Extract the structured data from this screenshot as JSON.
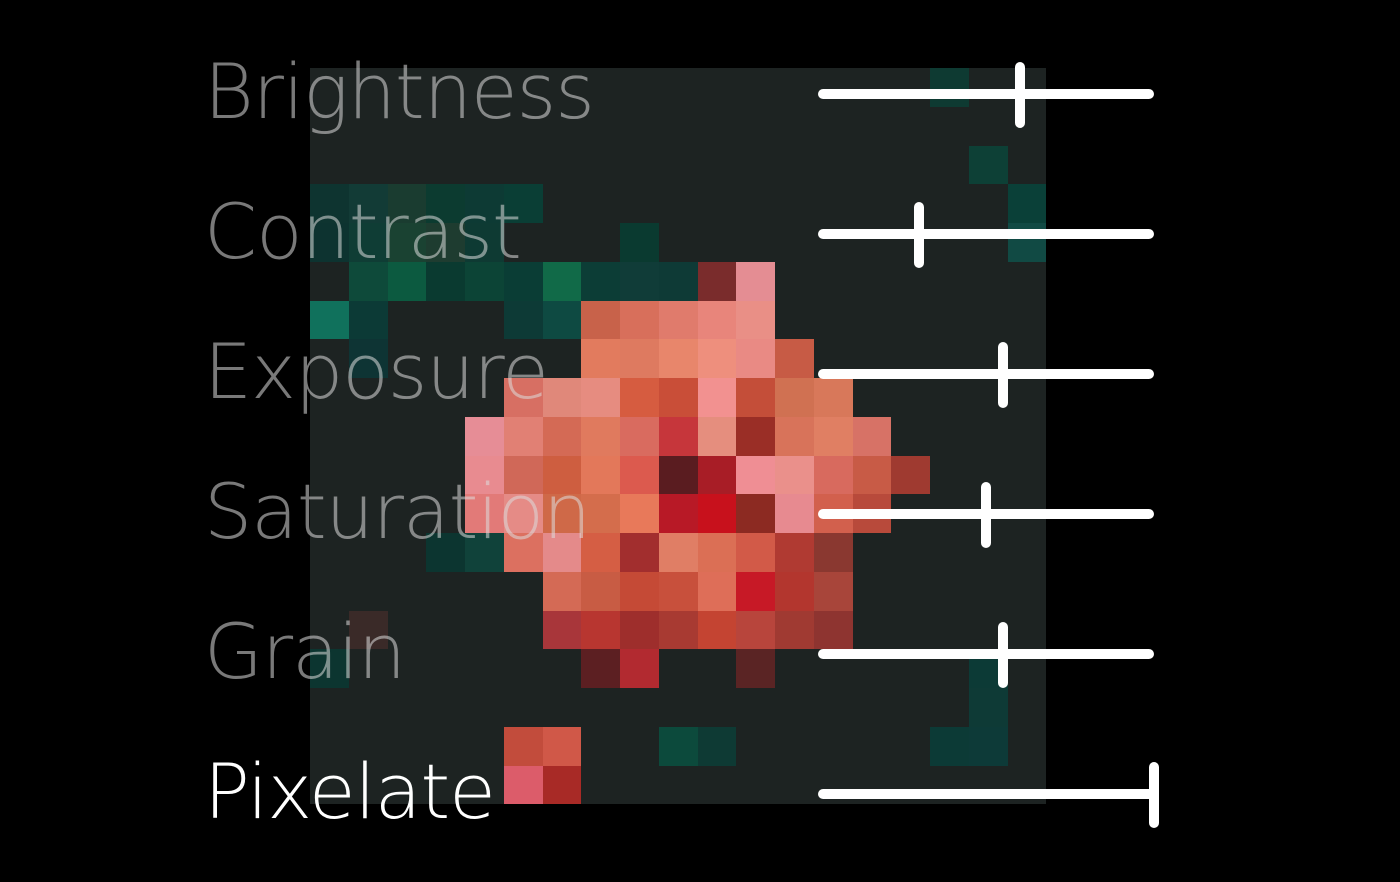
{
  "preview": {
    "background": "#1d2322"
  },
  "controls": [
    {
      "key": "brightness",
      "label": "Brightness",
      "value": 0.6,
      "active": false
    },
    {
      "key": "contrast",
      "label": "Contrast",
      "value": 0.3,
      "active": false
    },
    {
      "key": "exposure",
      "label": "Exposure",
      "value": 0.55,
      "active": false
    },
    {
      "key": "saturation",
      "label": "Saturation",
      "value": 0.5,
      "active": false
    },
    {
      "key": "grain",
      "label": "Grain",
      "value": 0.55,
      "active": false
    },
    {
      "key": "pixelate",
      "label": "Pixelate",
      "value": 1.0,
      "active": true
    }
  ],
  "colors": {
    "background": "#000000",
    "label_inactive": "rgba(220,220,220,0.55)",
    "label_active": "#ffffff",
    "slider": "#ffffff"
  }
}
